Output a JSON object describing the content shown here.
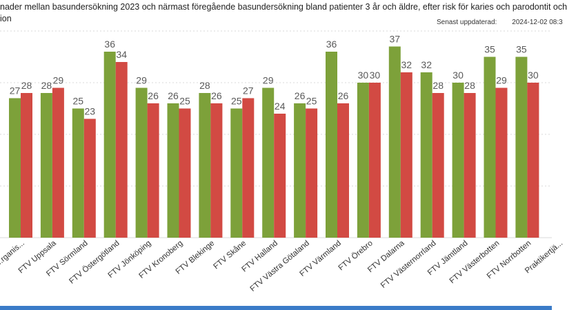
{
  "title": {
    "line1": "nader mellan basundersökning 2023 och närmast föregående basundersökning bland patienter 3 år och äldre, efter risk för karies och parodontit och",
    "line2": "ion"
  },
  "updated": {
    "label": "Senast uppdaterad:",
    "value": "2024-12-02 08:3"
  },
  "colors": {
    "series_a": "#7da13a",
    "series_b": "#d24a43",
    "gridline": "#d9d9d9",
    "frame": "#3a7bc8"
  },
  "chart_data": {
    "type": "bar",
    "categories": [
      "...rganis...",
      "FTV Uppsala",
      "FTV Sörmland",
      "FTV Östergötland",
      "FTV Jönköping",
      "FTV Kronoberg",
      "FTV Blekinge",
      "FTV Skåne",
      "FTV Halland",
      "FTV Västra Götaland",
      "FTV Värmland",
      "FTV Örebro",
      "FTV Dalarna",
      "FTV Västernorrland",
      "FTV Jämtland",
      "FTV Västerbotten",
      "FTV Norrbotten",
      "Praktikertjä..."
    ],
    "series": [
      {
        "values": [
          27,
          28,
          25,
          36,
          29,
          26,
          28,
          25,
          29,
          26,
          36,
          30,
          37,
          32,
          30,
          35,
          35,
          null
        ]
      },
      {
        "values": [
          28,
          29,
          23,
          34,
          26,
          25,
          26,
          27,
          24,
          25,
          26,
          30,
          32,
          28,
          28,
          29,
          30,
          null
        ]
      }
    ],
    "ylim": [
      0,
      40
    ],
    "grid": true,
    "legend": "none"
  }
}
